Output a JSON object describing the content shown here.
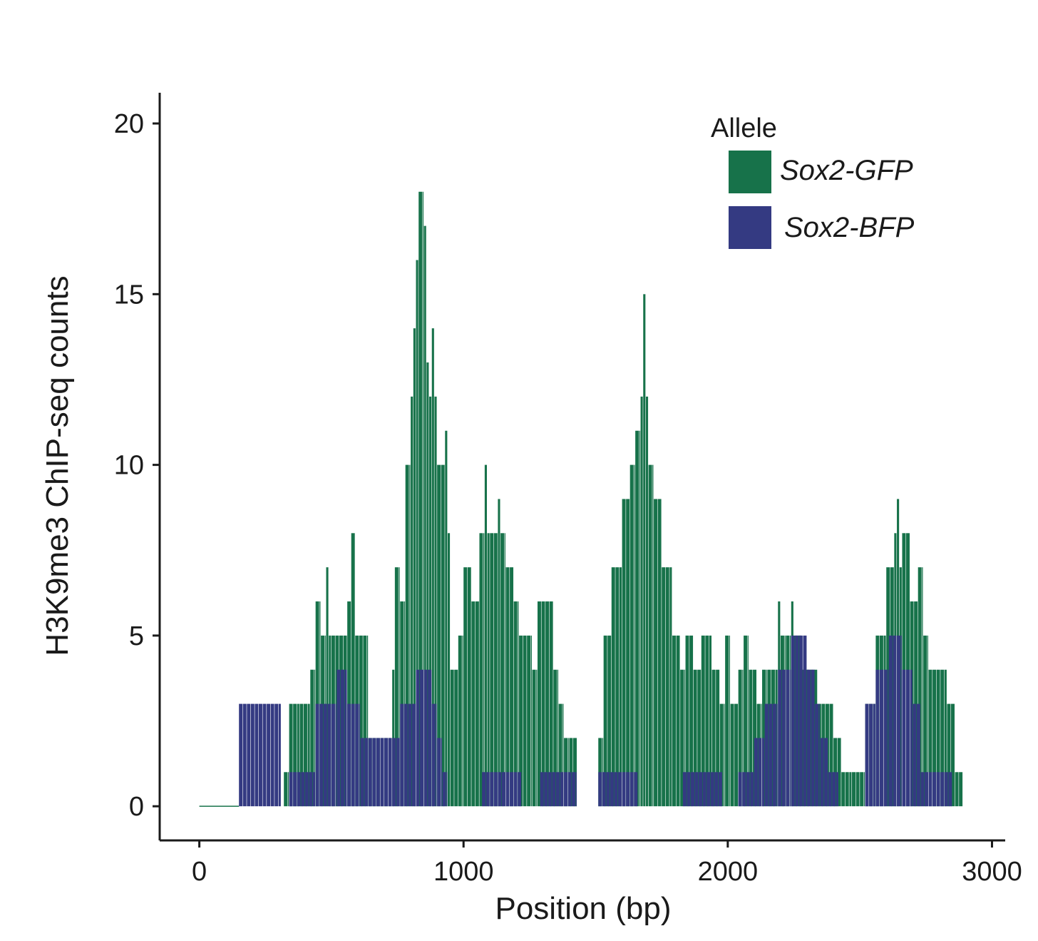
{
  "chart_data": {
    "type": "bar",
    "xlabel": "Position (bp)",
    "ylabel": "H3K9me3 ChIP-seq counts",
    "xlim": [
      -150,
      3050
    ],
    "ylim": [
      -1,
      20.9
    ],
    "xticks": [
      "0",
      "1000",
      "2000",
      "3000"
    ],
    "yticks": [
      "0",
      "5",
      "10",
      "15",
      "20"
    ],
    "bin_width_bp": 15,
    "legend": {
      "title": "Allele",
      "position": "top-right",
      "items": [
        {
          "name": "Sox2-GFP",
          "color": "#17724a"
        },
        {
          "name": "Sox2-BFP",
          "color": "#343a82"
        }
      ]
    },
    "series": [
      {
        "name": "Sox2-GFP",
        "color": "#17724a",
        "segments": [
          [
            0,
            150,
            0
          ],
          [
            320,
            340,
            1
          ],
          [
            340,
            380,
            3
          ],
          [
            380,
            420,
            3
          ],
          [
            420,
            440,
            4
          ],
          [
            440,
            460,
            6
          ],
          [
            460,
            480,
            5
          ],
          [
            480,
            490,
            7
          ],
          [
            490,
            500,
            5
          ],
          [
            500,
            560,
            5
          ],
          [
            560,
            575,
            6
          ],
          [
            575,
            590,
            8
          ],
          [
            590,
            640,
            5
          ],
          [
            640,
            700,
            2
          ],
          [
            700,
            730,
            2
          ],
          [
            730,
            740,
            4
          ],
          [
            740,
            760,
            7
          ],
          [
            760,
            780,
            6
          ],
          [
            780,
            800,
            10
          ],
          [
            800,
            810,
            12
          ],
          [
            810,
            820,
            14
          ],
          [
            820,
            830,
            16
          ],
          [
            830,
            850,
            18
          ],
          [
            850,
            860,
            17
          ],
          [
            860,
            870,
            13
          ],
          [
            870,
            880,
            12
          ],
          [
            880,
            890,
            14
          ],
          [
            890,
            900,
            12
          ],
          [
            900,
            930,
            10
          ],
          [
            930,
            940,
            11
          ],
          [
            940,
            950,
            8
          ],
          [
            950,
            980,
            4
          ],
          [
            980,
            1000,
            5
          ],
          [
            1000,
            1030,
            7
          ],
          [
            1030,
            1060,
            6
          ],
          [
            1060,
            1080,
            8
          ],
          [
            1080,
            1090,
            10
          ],
          [
            1090,
            1100,
            8
          ],
          [
            1100,
            1130,
            8
          ],
          [
            1130,
            1140,
            9
          ],
          [
            1140,
            1160,
            8
          ],
          [
            1160,
            1190,
            7
          ],
          [
            1190,
            1210,
            6
          ],
          [
            1210,
            1260,
            5
          ],
          [
            1260,
            1280,
            4
          ],
          [
            1280,
            1310,
            6
          ],
          [
            1310,
            1340,
            6
          ],
          [
            1340,
            1360,
            4
          ],
          [
            1360,
            1380,
            3
          ],
          [
            1380,
            1400,
            2
          ],
          [
            1400,
            1430,
            2
          ],
          [
            1510,
            1530,
            2
          ],
          [
            1530,
            1560,
            5
          ],
          [
            1560,
            1600,
            7
          ],
          [
            1600,
            1630,
            9
          ],
          [
            1630,
            1650,
            10
          ],
          [
            1650,
            1670,
            11
          ],
          [
            1670,
            1680,
            12
          ],
          [
            1680,
            1690,
            15
          ],
          [
            1690,
            1700,
            12
          ],
          [
            1700,
            1720,
            10
          ],
          [
            1720,
            1750,
            9
          ],
          [
            1750,
            1790,
            7
          ],
          [
            1790,
            1820,
            5
          ],
          [
            1820,
            1840,
            4
          ],
          [
            1840,
            1870,
            5
          ],
          [
            1870,
            1900,
            4
          ],
          [
            1900,
            1940,
            5
          ],
          [
            1940,
            1970,
            4
          ],
          [
            1970,
            1990,
            3
          ],
          [
            1990,
            2010,
            5
          ],
          [
            2010,
            2040,
            3
          ],
          [
            2040,
            2060,
            4
          ],
          [
            2060,
            2080,
            5
          ],
          [
            2080,
            2110,
            4
          ],
          [
            2110,
            2130,
            3
          ],
          [
            2130,
            2150,
            4
          ],
          [
            2150,
            2190,
            4
          ],
          [
            2190,
            2200,
            6
          ],
          [
            2200,
            2220,
            5
          ],
          [
            2220,
            2240,
            5
          ],
          [
            2240,
            2250,
            6
          ],
          [
            2250,
            2280,
            5
          ],
          [
            2280,
            2340,
            4
          ],
          [
            2340,
            2400,
            3
          ],
          [
            2400,
            2430,
            2
          ],
          [
            2430,
            2470,
            1
          ],
          [
            2470,
            2520,
            1
          ],
          [
            2520,
            2560,
            3
          ],
          [
            2560,
            2600,
            5
          ],
          [
            2600,
            2630,
            7
          ],
          [
            2630,
            2640,
            8
          ],
          [
            2640,
            2650,
            9
          ],
          [
            2650,
            2660,
            7
          ],
          [
            2660,
            2690,
            8
          ],
          [
            2690,
            2720,
            6
          ],
          [
            2720,
            2740,
            7
          ],
          [
            2740,
            2760,
            5
          ],
          [
            2760,
            2790,
            4
          ],
          [
            2790,
            2830,
            4
          ],
          [
            2830,
            2860,
            3
          ],
          [
            2860,
            2890,
            1
          ]
        ]
      },
      {
        "name": "Sox2-BFP",
        "color": "#343a82",
        "segments": [
          [
            150,
            310,
            3
          ],
          [
            340,
            440,
            1
          ],
          [
            440,
            520,
            3
          ],
          [
            520,
            560,
            4
          ],
          [
            560,
            610,
            3
          ],
          [
            610,
            640,
            2
          ],
          [
            640,
            760,
            2
          ],
          [
            760,
            820,
            3
          ],
          [
            820,
            880,
            4
          ],
          [
            880,
            900,
            3
          ],
          [
            900,
            920,
            2
          ],
          [
            920,
            940,
            1
          ],
          [
            1070,
            1220,
            1
          ],
          [
            1290,
            1430,
            1
          ],
          [
            1510,
            1660,
            1
          ],
          [
            1830,
            1980,
            1
          ],
          [
            2040,
            2100,
            1
          ],
          [
            2100,
            2140,
            2
          ],
          [
            2140,
            2190,
            3
          ],
          [
            2190,
            2240,
            4
          ],
          [
            2240,
            2300,
            5
          ],
          [
            2300,
            2330,
            4
          ],
          [
            2330,
            2350,
            3
          ],
          [
            2350,
            2380,
            2
          ],
          [
            2380,
            2420,
            1
          ],
          [
            2520,
            2560,
            3
          ],
          [
            2560,
            2610,
            4
          ],
          [
            2610,
            2660,
            5
          ],
          [
            2660,
            2700,
            4
          ],
          [
            2700,
            2730,
            3
          ],
          [
            2730,
            2760,
            1
          ],
          [
            2760,
            2850,
            1
          ]
        ]
      }
    ]
  }
}
